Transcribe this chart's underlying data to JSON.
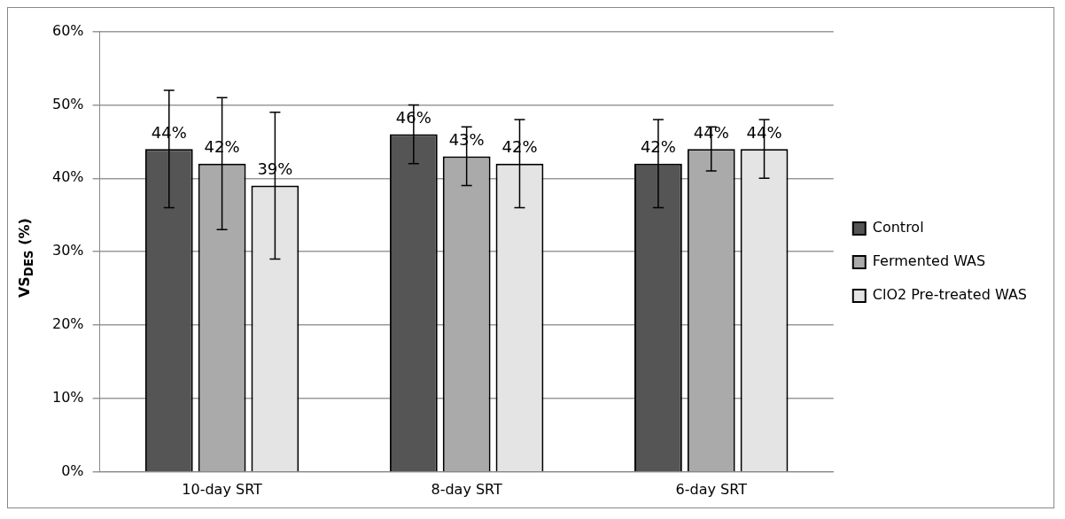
{
  "chart_data": {
    "type": "bar",
    "ylabel": "VS$_{DES}$ (%)",
    "categories": [
      "10-day SRT",
      "8-day SRT",
      "6-day SRT"
    ],
    "series": [
      {
        "name": "Control",
        "color": "#555555",
        "values": [
          44,
          46,
          42
        ],
        "errors": [
          8,
          4,
          6
        ],
        "value_labels": [
          "44%",
          "46%",
          "42%"
        ]
      },
      {
        "name": "Fermented WAS",
        "color": "#aaaaaa",
        "values": [
          42,
          43,
          44
        ],
        "errors": [
          9,
          4,
          3
        ],
        "value_labels": [
          "42%",
          "43%",
          "44%"
        ]
      },
      {
        "name": "ClO2 Pre-treated WAS",
        "color": "#e4e4e4",
        "values": [
          39,
          42,
          44
        ],
        "errors": [
          10,
          6,
          4
        ],
        "value_labels": [
          "39%",
          "42%",
          "44%"
        ]
      }
    ],
    "ylim": [
      0,
      60
    ],
    "yticks": [
      {
        "value": 0,
        "label": "0%"
      },
      {
        "value": 10,
        "label": "10%"
      },
      {
        "value": 20,
        "label": "20%"
      },
      {
        "value": 30,
        "label": "30%"
      },
      {
        "value": 40,
        "label": "40%"
      },
      {
        "value": 50,
        "label": "50%"
      },
      {
        "value": 60,
        "label": "60%"
      }
    ],
    "grid": "y",
    "legend": "right"
  }
}
